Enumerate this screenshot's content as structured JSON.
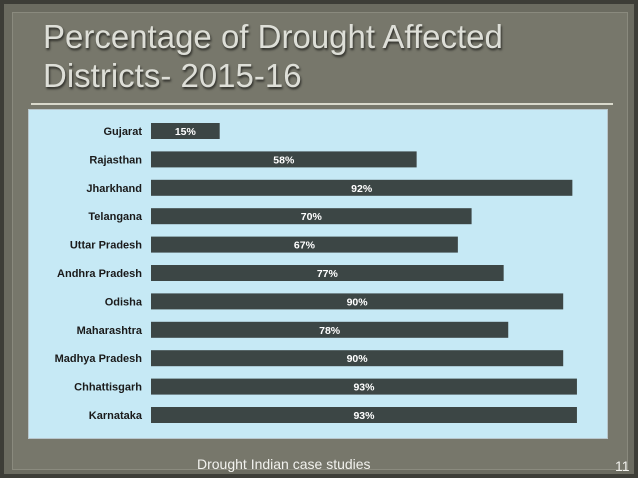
{
  "slide": {
    "title_line1": "Percentage of Drought Affected",
    "title_line2": "Districts- 2015-16",
    "footer": "Drought  Indian case studies",
    "page_number": "11"
  },
  "colors": {
    "bar": "#3c4645",
    "chart_background": "#c6e9f5",
    "slide_background": "#6b6b60"
  },
  "chart_data": {
    "type": "bar",
    "orientation": "horizontal",
    "title": "",
    "xlabel": "",
    "ylabel": "",
    "xlim": [
      0,
      100
    ],
    "grid": false,
    "categories": [
      "Gujarat",
      "Rajasthan",
      "Jharkhand",
      "Telangana",
      "Uttar Pradesh",
      "Andhra Pradesh",
      "Odisha",
      "Maharashtra",
      "Madhya Pradesh",
      "Chhattisgarh",
      "Karnataka"
    ],
    "values": [
      15,
      58,
      92,
      70,
      67,
      77,
      90,
      78,
      90,
      93,
      93
    ],
    "value_labels": [
      "15%",
      "58%",
      "92%",
      "70%",
      "67%",
      "77%",
      "90%",
      "78%",
      "90%",
      "93%",
      "93%"
    ]
  }
}
